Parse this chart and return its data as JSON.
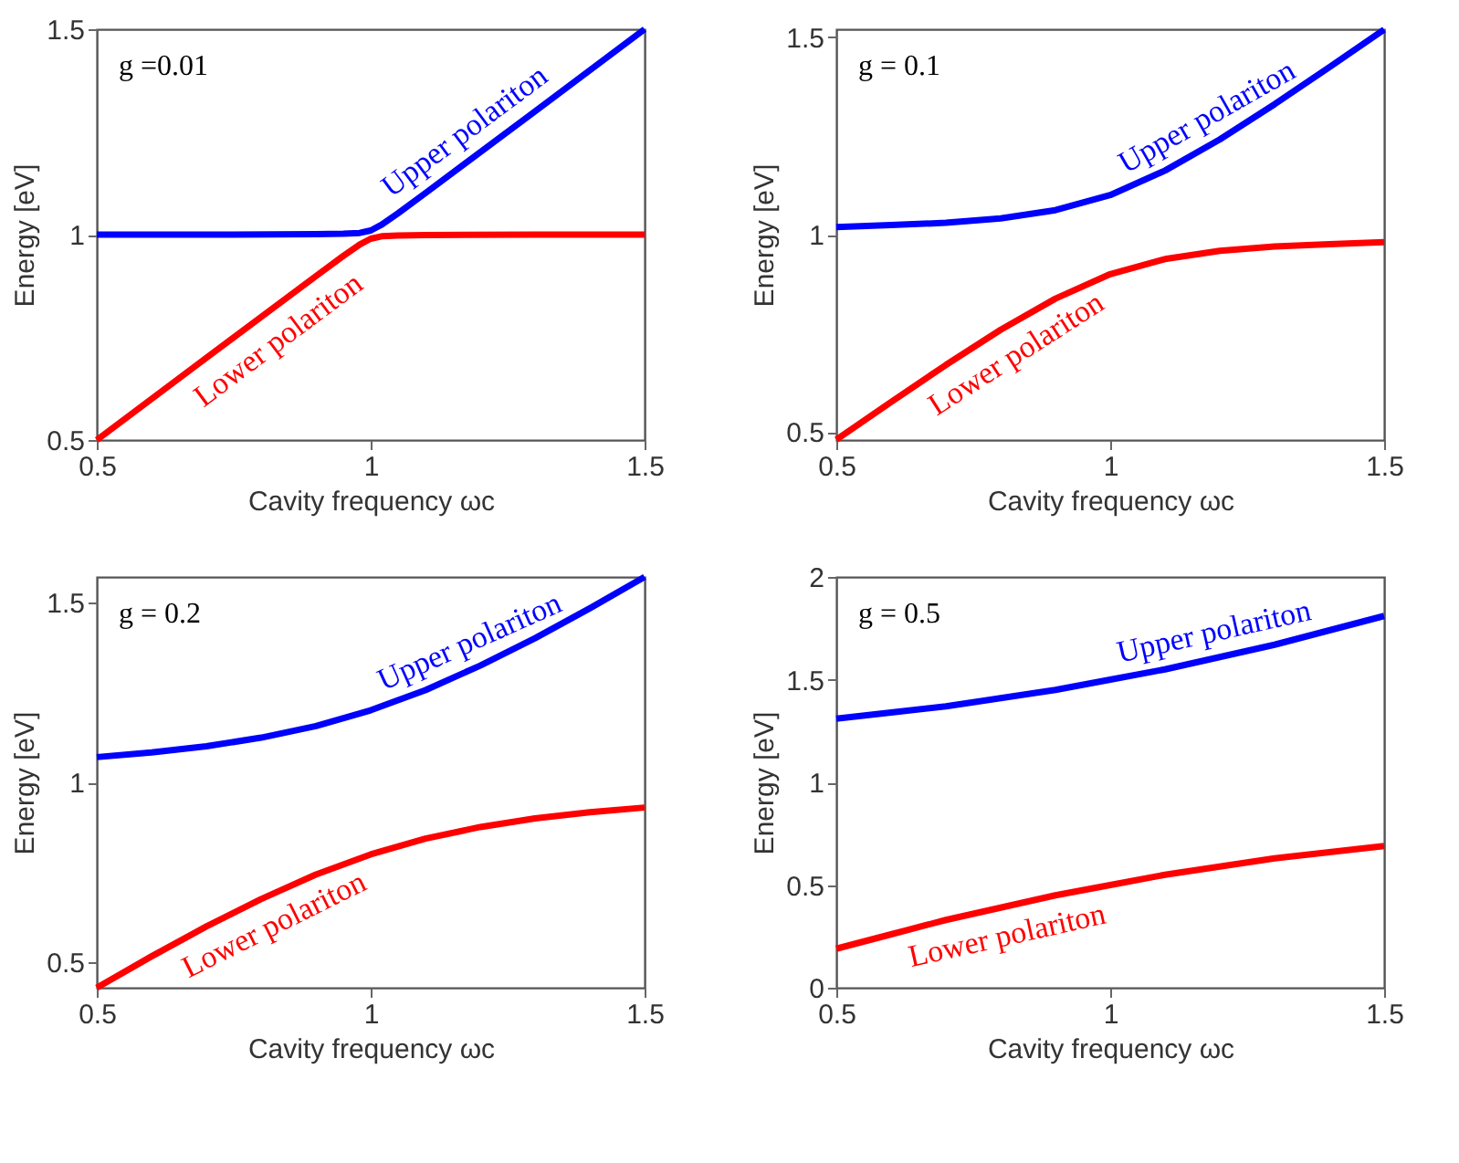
{
  "chart_data": [
    {
      "type": "line",
      "xlabel": "Cavity frequency ωc",
      "ylabel": "Energy [eV]",
      "annotations": [
        "g =0.01"
      ],
      "xlim": [
        0.5,
        1.5
      ],
      "xticks": [
        0.5,
        1,
        1.5
      ],
      "ylim": [
        0.5,
        1.5
      ],
      "yticks": [
        0.5,
        1,
        1.5
      ],
      "grid": false,
      "x": [
        0.5,
        0.7,
        0.9,
        0.95,
        0.98,
        1.0,
        1.02,
        1.05,
        1.1,
        1.3,
        1.5
      ],
      "series": [
        {
          "name": "Upper polariton",
          "color": "#0000ff",
          "values": [
            1.0,
            1.0,
            1.001,
            1.002,
            1.004,
            1.01,
            1.024,
            1.052,
            1.101,
            1.3,
            1.5
          ]
        },
        {
          "name": "Lower polariton",
          "color": "#ff0000",
          "values": [
            0.5,
            0.7,
            0.899,
            0.948,
            0.976,
            0.99,
            0.996,
            0.998,
            0.999,
            1.0,
            1.0
          ]
        }
      ]
    },
    {
      "type": "line",
      "xlabel": "Cavity frequency ωc",
      "ylabel": "Energy [eV]",
      "annotations": [
        "g = 0.1"
      ],
      "xlim": [
        0.5,
        1.5
      ],
      "xticks": [
        0.5,
        1,
        1.5
      ],
      "ylim": [
        0.48,
        1.52
      ],
      "yticks": [
        0.5,
        1,
        1.5
      ],
      "grid": false,
      "x": [
        0.5,
        0.6,
        0.7,
        0.8,
        0.9,
        1.0,
        1.1,
        1.2,
        1.3,
        1.4,
        1.5
      ],
      "series": [
        {
          "name": "Upper polariton",
          "color": "#0000ff",
          "values": [
            1.019,
            1.024,
            1.03,
            1.041,
            1.062,
            1.1,
            1.162,
            1.241,
            1.33,
            1.424,
            1.519
          ]
        },
        {
          "name": "Lower polariton",
          "color": "#ff0000",
          "values": [
            0.481,
            0.576,
            0.67,
            0.759,
            0.838,
            0.9,
            0.938,
            0.959,
            0.97,
            0.976,
            0.981
          ]
        }
      ]
    },
    {
      "type": "line",
      "xlabel": "Cavity frequency ωc",
      "ylabel": "Energy [eV]",
      "annotations": [
        "g = 0.2"
      ],
      "xlim": [
        0.5,
        1.5
      ],
      "xticks": [
        0.5,
        1,
        1.5
      ],
      "ylim": [
        0.43,
        1.57
      ],
      "yticks": [
        0.5,
        1,
        1.5
      ],
      "grid": false,
      "x": [
        0.5,
        0.6,
        0.7,
        0.8,
        0.9,
        1.0,
        1.1,
        1.2,
        1.3,
        1.4,
        1.5
      ],
      "series": [
        {
          "name": "Upper polariton",
          "color": "#0000ff",
          "values": [
            1.07,
            1.083,
            1.1,
            1.124,
            1.156,
            1.2,
            1.256,
            1.324,
            1.4,
            1.483,
            1.57
          ]
        },
        {
          "name": "Lower polariton",
          "color": "#ff0000",
          "values": [
            0.43,
            0.517,
            0.6,
            0.676,
            0.744,
            0.8,
            0.844,
            0.876,
            0.9,
            0.917,
            0.93
          ]
        }
      ]
    },
    {
      "type": "line",
      "xlabel": "Cavity frequency ωc",
      "ylabel": "Energy [eV]",
      "annotations": [
        "g = 0.5"
      ],
      "xlim": [
        0.5,
        1.5
      ],
      "xticks": [
        0.5,
        1,
        1.5
      ],
      "ylim": [
        0,
        2
      ],
      "yticks": [
        0,
        0.5,
        1,
        1.5,
        2
      ],
      "grid": false,
      "x": [
        0.5,
        0.6,
        0.7,
        0.8,
        0.9,
        1.0,
        1.1,
        1.2,
        1.3,
        1.4,
        1.5
      ],
      "series": [
        {
          "name": "Upper polariton",
          "color": "#0000ff",
          "values": [
            1.31,
            1.34,
            1.37,
            1.41,
            1.45,
            1.5,
            1.55,
            1.61,
            1.67,
            1.74,
            1.81
          ]
        },
        {
          "name": "Lower polariton",
          "color": "#ff0000",
          "values": [
            0.19,
            0.26,
            0.33,
            0.39,
            0.45,
            0.5,
            0.55,
            0.59,
            0.63,
            0.66,
            0.69
          ]
        }
      ]
    }
  ]
}
